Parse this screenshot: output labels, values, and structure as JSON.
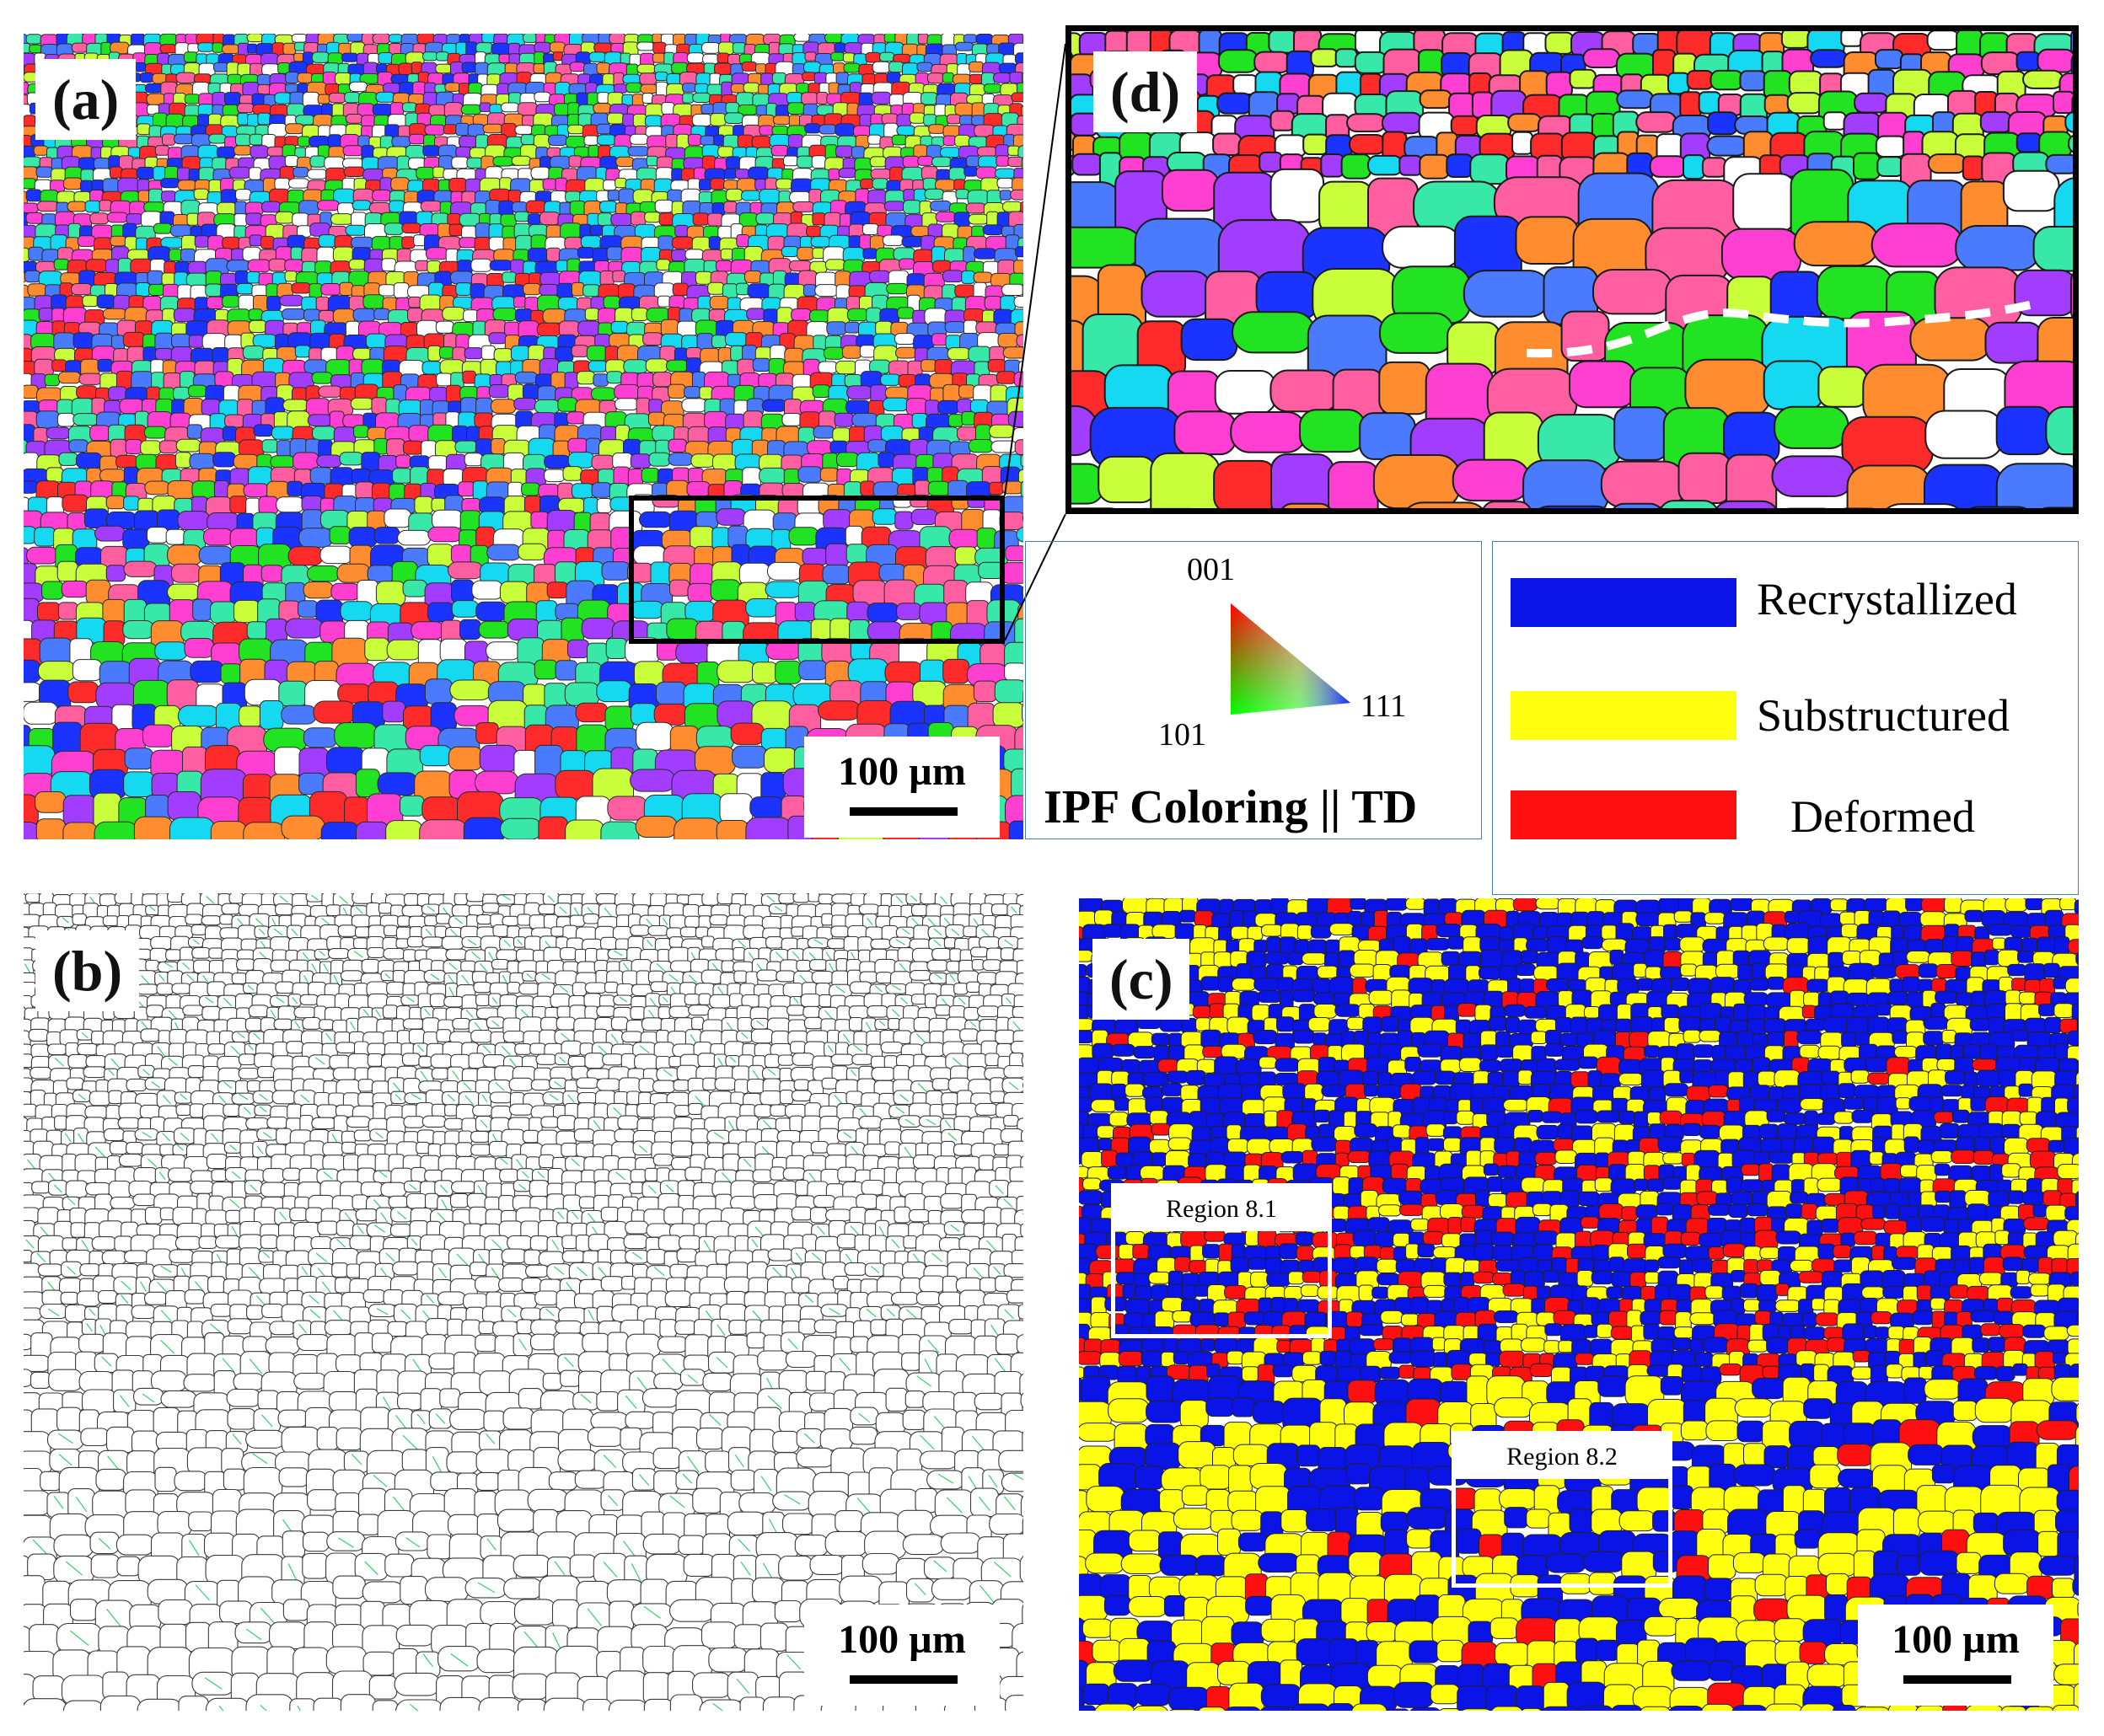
{
  "panels": {
    "a": {
      "label": "(a)",
      "scale": "100 µm"
    },
    "b": {
      "label": "(b)",
      "scale": "100 µm"
    },
    "c": {
      "label": "(c)",
      "scale": "100 µm"
    },
    "d": {
      "label": "(d)"
    }
  },
  "ipf_key": {
    "title": "IPF Coloring || TD",
    "corner_001": "001",
    "corner_101": "101",
    "corner_111": "111"
  },
  "legend": {
    "items": [
      {
        "label": "Recrystallized",
        "color": "#0a14e6"
      },
      {
        "label": "Substructured",
        "color": "#ffff10"
      },
      {
        "label": "Deformed",
        "color": "#ff1010"
      }
    ]
  },
  "regions": [
    {
      "label": "Region 8.1"
    },
    {
      "label": "Region 8.2"
    }
  ],
  "colors": {
    "ipf": [
      "#ff2a2a",
      "#21e321",
      "#1a33ff",
      "#15d9f0",
      "#ff3fd2",
      "#ff8c2e",
      "#c8ff3a",
      "#ffffff",
      "#a23cff",
      "#ff5fa0",
      "#38e8a8",
      "#4a7bff"
    ],
    "boundary": "#3a3a3a",
    "low_angle_boundary": "#2fd36a",
    "zoom_box": "#000000",
    "frame": "#4a7fb5"
  }
}
